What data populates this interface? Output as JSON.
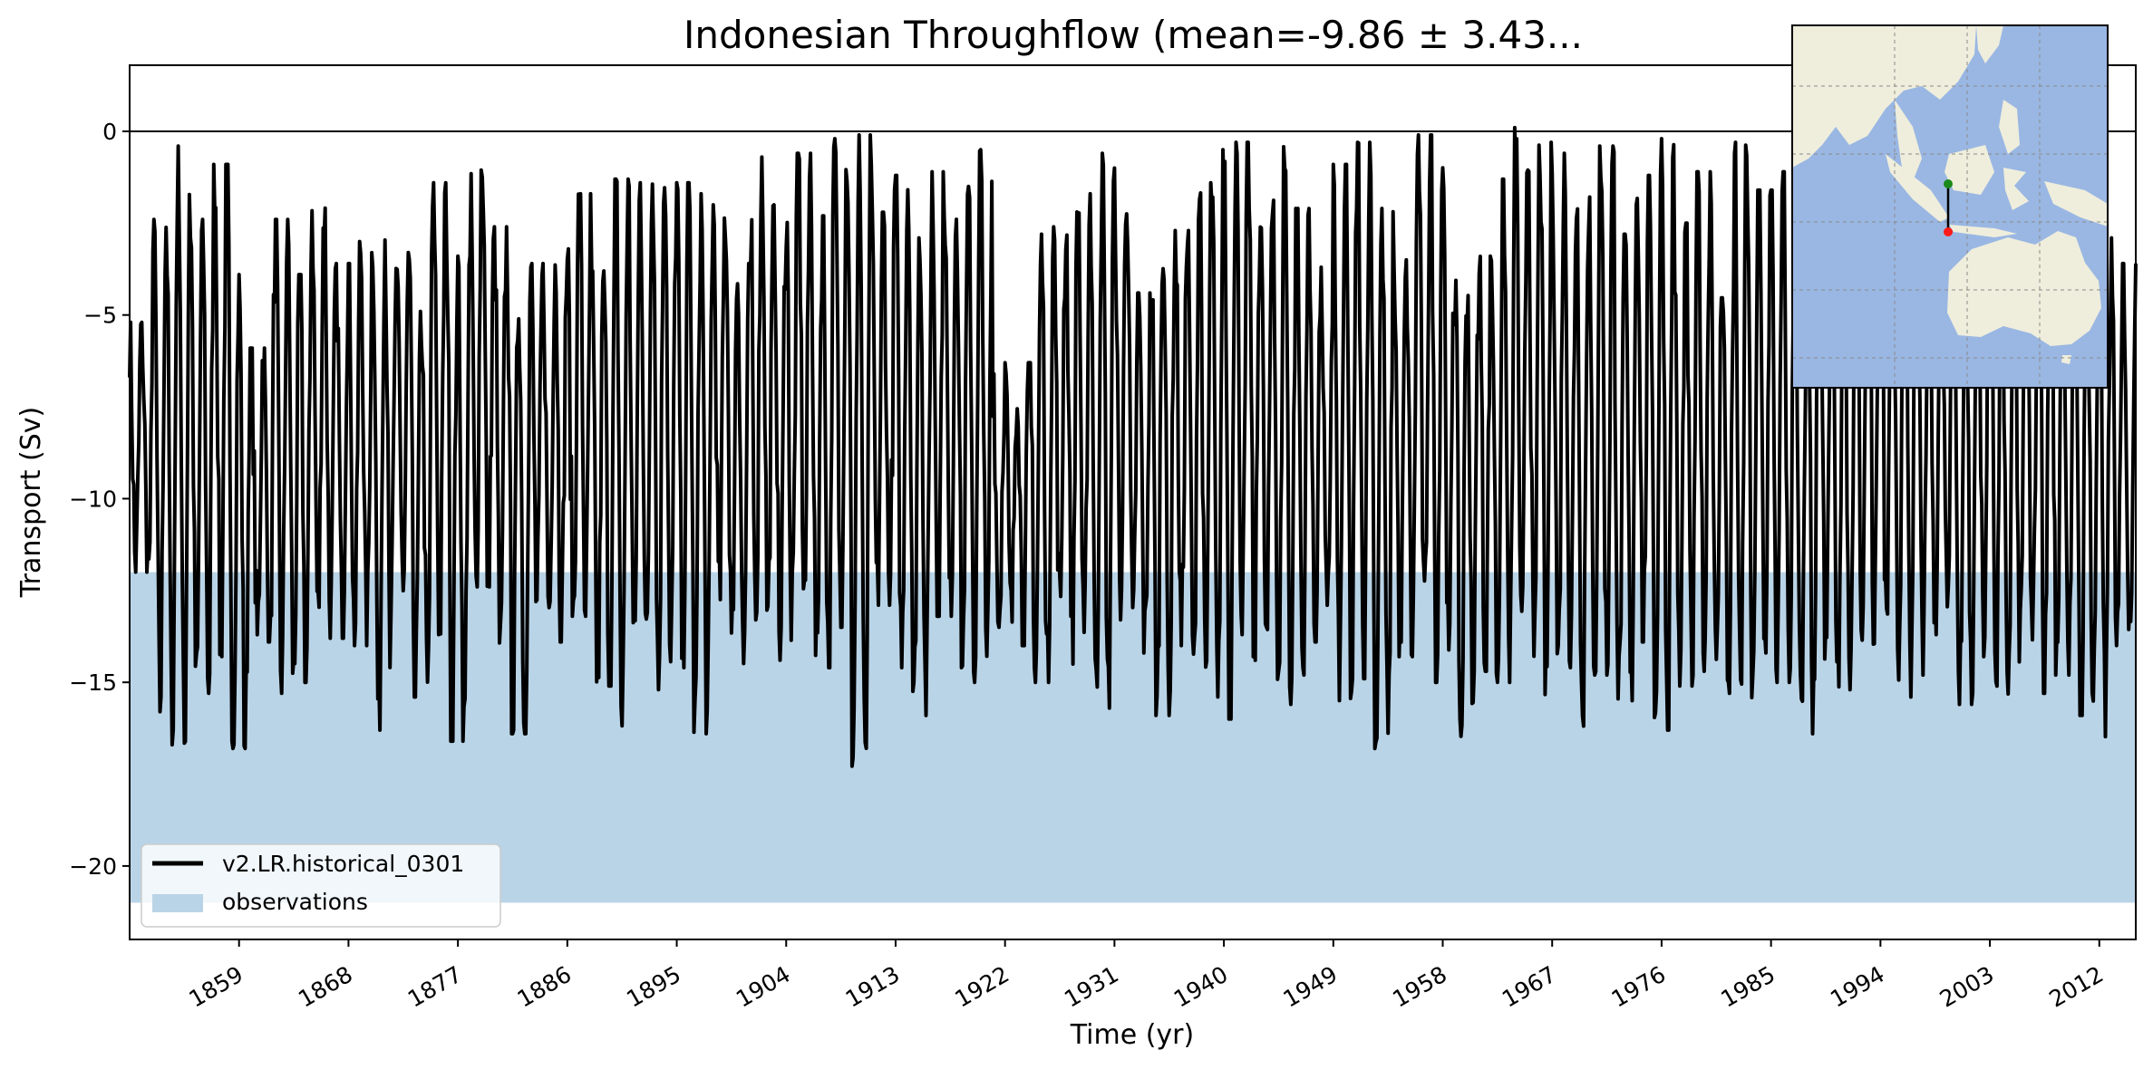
{
  "chart_data": {
    "type": "line",
    "title": "Indonesian Throughflow (mean=-9.86 ± 3.43...",
    "xlabel": "Time (yr)",
    "ylabel": "Transport (Sv)",
    "xlim": [
      1850,
      2015
    ],
    "ylim": [
      -22,
      1.8
    ],
    "x_ticks": [
      "1859",
      "1868",
      "1877",
      "1886",
      "1895",
      "1904",
      "1913",
      "1922",
      "1931",
      "1940",
      "1949",
      "1958",
      "1967",
      "1976",
      "1985",
      "1994",
      "2003",
      "2012"
    ],
    "y_ticks": [
      "0",
      "-5",
      "-10",
      "-15",
      "-20"
    ],
    "zero_line": 0,
    "grid": false,
    "legend_position": "lower-left",
    "series": [
      {
        "name": "v2.LR.historical_0301",
        "color": "#000000",
        "values_monthly_cycles": {
          "start_year": 1850,
          "end_year": 2015,
          "annual_maximum": [
            -5.2,
            -2.4,
            -0.4,
            -2.4,
            -0.9,
            -3.9,
            -5.9,
            -2.4,
            -3.9,
            -2.0,
            -3.6,
            -3.0,
            -2.7,
            -3.3,
            -4.9,
            -1.4,
            -3.4,
            -0.5,
            -2.6,
            -4.2,
            -3.6,
            -3.2,
            -1.7,
            -3.8,
            -1.3,
            -1.4,
            -0.4,
            -1.4,
            -1.7,
            -2.0,
            -3.6,
            -0.7,
            -2.0,
            -0.6,
            -2.3,
            -0.2,
            -0.1,
            -2.2,
            -1.2,
            -2.4,
            -1.1,
            -1.5,
            -0.5,
            -6.3,
            -6.3,
            -2.8,
            -2.6,
            -1.7,
            -0.6,
            -1.0,
            -4.4,
            -2.3,
            -2.7,
            -1.4,
            -0.5,
            -0.3,
            -1.8,
            -0.3,
            -2.1,
            -3.7,
            -0.9,
            -0.3,
            -2.1,
            -3.5,
            -0.1,
            -0.4,
            -3.9,
            -3.4,
            -1.3,
            0.1,
            -0.3,
            -0.6,
            -1.6,
            -0.4,
            -2.8,
            -1.2,
            -0.2,
            -2.5,
            -1.1,
            -3.3,
            -0.3,
            -1.6,
            -1.1,
            -3.7,
            -2.6,
            -2.6,
            -1.0,
            -1.7,
            0.8,
            -2.3,
            -1.8,
            -2.8,
            -1.7,
            -3.2,
            -2.5,
            -1.6,
            -2.2,
            -3.2,
            -2.9,
            -3.6
          ],
          "annual_minimum": [
            -12.0,
            -15.8,
            -16.7,
            -15.3,
            -14.3,
            -16.8,
            -13.9,
            -15.3,
            -15.0,
            -13.3,
            -13.8,
            -14.0,
            -16.3,
            -13.0,
            -15.4,
            -13.7,
            -16.6,
            -12.4,
            -14.5,
            -16.4,
            -13.1,
            -13.9,
            -13.2,
            -15.1,
            -16.3,
            -14.4,
            -15.2,
            -14.6,
            -16.4,
            -12.9,
            -14.5,
            -13.3,
            -14.4,
            -12.8,
            -14.6,
            -13.5,
            -17.7,
            -12.9,
            -14.6,
            -15.9,
            -13.2,
            -14.6,
            -15.0,
            -13.5,
            -14.0,
            -15.0,
            -13.2,
            -14.6,
            -15.7,
            -13.3,
            -14.2,
            -15.9,
            -14.0,
            -15.4,
            -16.0,
            -13.7,
            -14.4,
            -15.6,
            -14.8,
            -13.9,
            -15.5,
            -14.9,
            -16.8,
            -14.3,
            -13.6,
            -15.0,
            -16.7,
            -14.7,
            -15.0,
            -14.4,
            -15.4,
            -14.6,
            -16.2,
            -14.8,
            -15.5,
            -13.9,
            -16.3,
            -15.1,
            -14.7,
            -15.3,
            -16.1,
            -14.2,
            -15.0,
            -16.4,
            -14.7,
            -15.2,
            -14.6,
            -13.8,
            -15.4,
            -14.8,
            -13.7,
            -15.6,
            -14.3,
            -16.0,
            -14.5,
            -15.3,
            -14.8,
            -15.9,
            -16.5,
            -14.0
          ]
        }
      },
      {
        "name": "observations",
        "type": "band",
        "color": "#bad4e7",
        "range": [
          -21.0,
          -12.0
        ]
      }
    ],
    "inset_map": {
      "description_visible": "map inset of maritime Southeast Asia and Australia with transect",
      "ocean_color": "#9ab7e3",
      "land_color": "#efeedc",
      "start_marker_color": "#1a8a1a",
      "end_marker_color": "#ff1a1a"
    }
  }
}
